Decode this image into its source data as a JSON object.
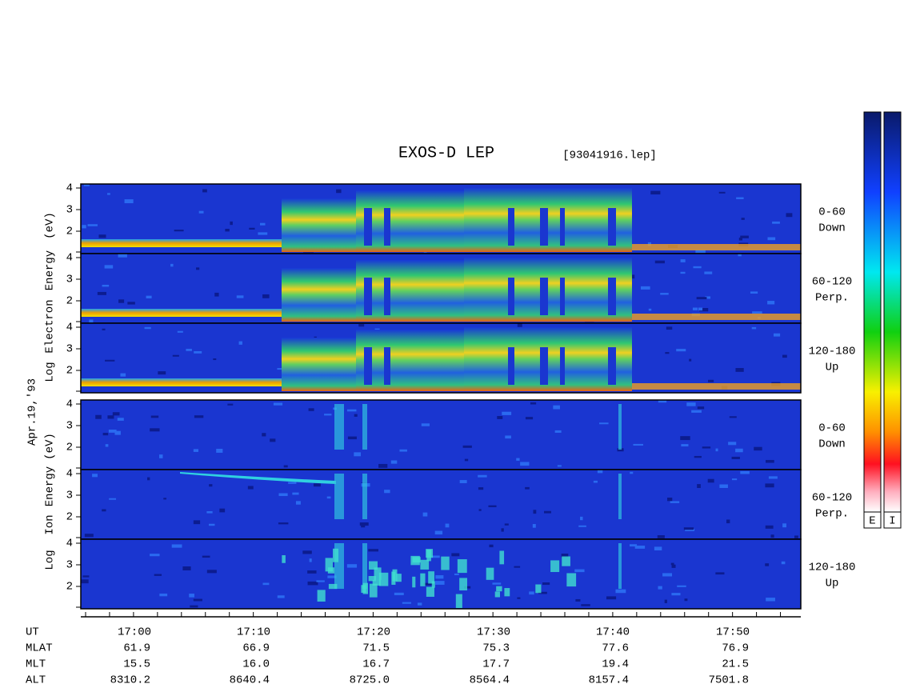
{
  "header": {
    "title": "EXOS-D LEP",
    "file": "[93041916.lep]",
    "date": "Apr.19,'93"
  },
  "electron": {
    "axis_label": [
      "Log",
      "Electron",
      "Energy",
      "(eV)"
    ],
    "panels": [
      {
        "angle": "0-60",
        "direction": "Down"
      },
      {
        "angle": "60-120",
        "direction": "Perp."
      },
      {
        "angle": "120-180",
        "direction": "Up"
      }
    ]
  },
  "ion": {
    "axis_label": [
      "Log",
      "Ion",
      "Energy",
      "(eV)"
    ],
    "panels": [
      {
        "angle": "0-60",
        "direction": "Down"
      },
      {
        "angle": "60-120",
        "direction": "Perp."
      },
      {
        "angle": "120-180",
        "direction": "Up"
      }
    ]
  },
  "yticks": [
    "4",
    "3",
    "2"
  ],
  "ephemeris": {
    "rows": [
      {
        "label": "UT",
        "values": [
          "17:00",
          "17:10",
          "17:20",
          "17:30",
          "17:40",
          "17:50"
        ]
      },
      {
        "label": "MLAT",
        "values": [
          "61.9",
          "66.9",
          "71.5",
          "75.3",
          "77.6",
          "76.9"
        ]
      },
      {
        "label": "MLT",
        "values": [
          "15.5",
          "16.0",
          "16.7",
          "17.7",
          "19.4",
          "21.5"
        ]
      },
      {
        "label": "ALT",
        "values": [
          "8310.2",
          "8640.4",
          "8725.0",
          "8564.4",
          "8157.4",
          "7501.8"
        ]
      }
    ]
  },
  "colorbars": [
    "E",
    "I"
  ]
}
